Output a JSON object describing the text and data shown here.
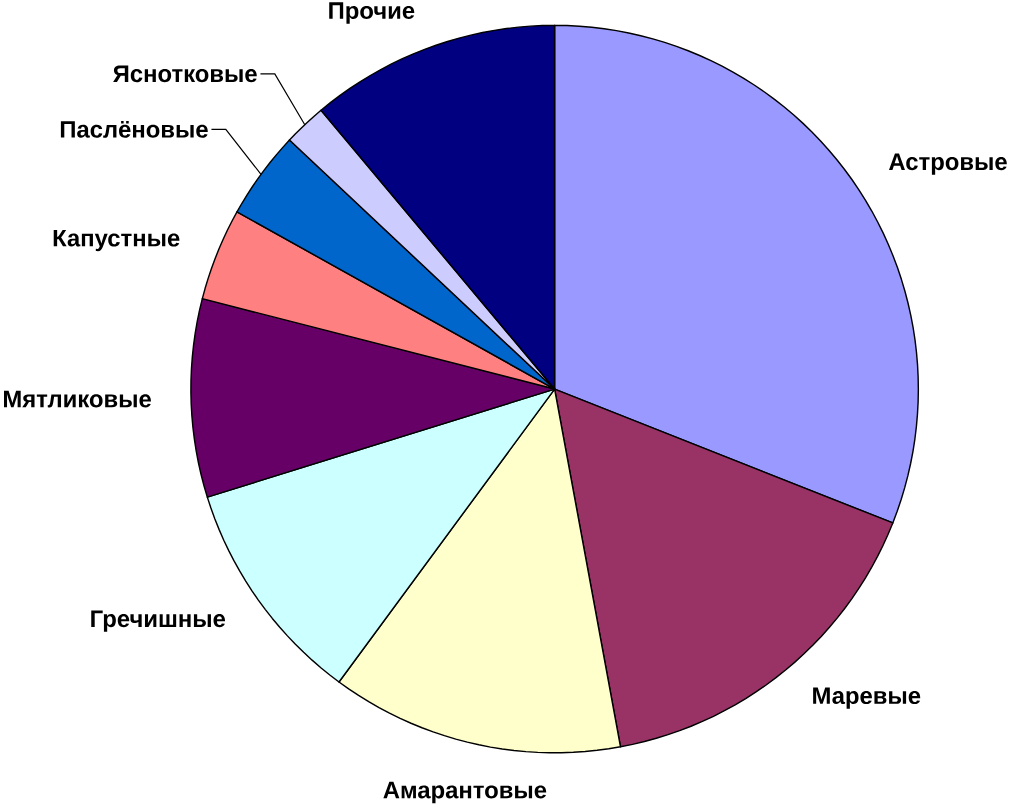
{
  "chart_data": {
    "type": "pie",
    "categories": [
      "Астровые",
      "Маревые",
      "Амарантовые",
      "Гречишные",
      "Мятликовые",
      "Капустные",
      "Паслёновые",
      "Яснотковые",
      "Прочие"
    ],
    "values": [
      31.0,
      16.1,
      13.0,
      10.1,
      8.8,
      4.1,
      3.9,
      1.9,
      11.1
    ],
    "colors": [
      "#9999ff",
      "#993366",
      "#ffffcc",
      "#ccffff",
      "#660066",
      "#ff8080",
      "#0066cc",
      "#ccccff",
      "#000080"
    ]
  }
}
